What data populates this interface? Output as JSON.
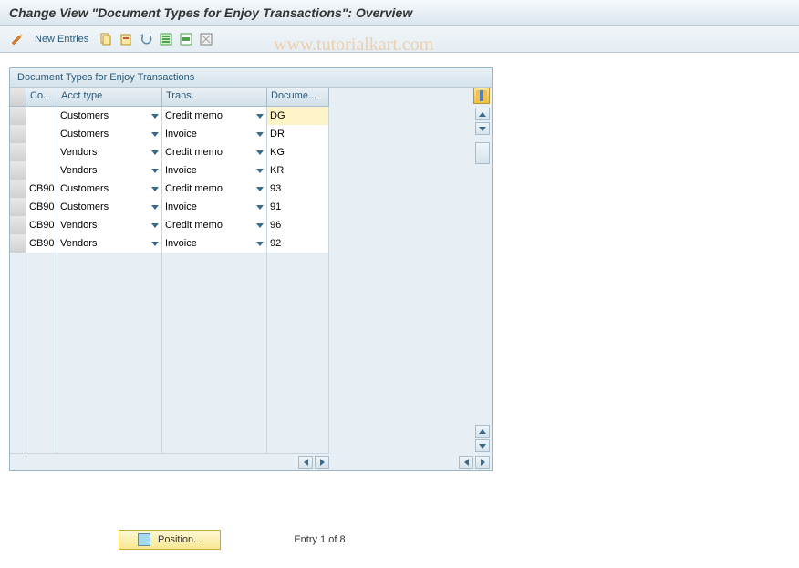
{
  "title": "Change View \"Document Types for Enjoy Transactions\": Overview",
  "toolbar": {
    "new_entries_label": "New Entries"
  },
  "watermark": "www.tutorialkart.com",
  "section": {
    "title": "Document Types for Enjoy Transactions"
  },
  "grid": {
    "cols": {
      "co": "Co...",
      "acct": "Acct type",
      "trans": "Trans.",
      "doc": "Docume..."
    },
    "rows": [
      {
        "co": "",
        "acct": "Customers",
        "trans": "Credit memo",
        "doc": "DG",
        "hl": true
      },
      {
        "co": "",
        "acct": "Customers",
        "trans": "Invoice",
        "doc": "DR"
      },
      {
        "co": "",
        "acct": "Vendors",
        "trans": "Credit memo",
        "doc": "KG"
      },
      {
        "co": "",
        "acct": "Vendors",
        "trans": "Invoice",
        "doc": "KR"
      },
      {
        "co": "CB90",
        "acct": "Customers",
        "trans": "Credit memo",
        "doc": "93"
      },
      {
        "co": "CB90",
        "acct": "Customers",
        "trans": "Invoice",
        "doc": "91"
      },
      {
        "co": "CB90",
        "acct": "Vendors",
        "trans": "Credit memo",
        "doc": "96"
      },
      {
        "co": "CB90",
        "acct": "Vendors",
        "trans": "Invoice",
        "doc": "92"
      }
    ],
    "empty_rows": 11
  },
  "footer": {
    "position_label": "Position...",
    "entry_text": "Entry 1 of 8"
  },
  "colors": {
    "toolbar_icons": {
      "pencil": "#d88030",
      "copy": "#e0b850",
      "paste_red": "#d05050",
      "undo": "#5a8ab0",
      "green1": "#50a050",
      "green2": "#50a050",
      "mixed": "#808080"
    }
  }
}
